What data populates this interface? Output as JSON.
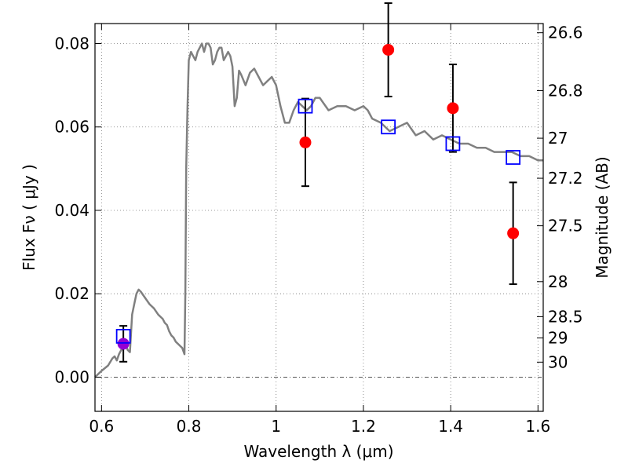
{
  "chart_data": {
    "type": "scatter",
    "title": "",
    "xlabel": "Wavelength  λ (μm)",
    "ylabel": "Flux  Fν  ( μJy )",
    "y2label": "Magnitude (AB)",
    "xlim": [
      0.585,
      1.612
    ],
    "ylim": [
      -0.0082,
      0.0848
    ],
    "x_ticks": [
      0.6,
      0.8,
      1.0,
      1.2,
      1.4,
      1.6
    ],
    "x_tick_labels": [
      "0.6",
      "0.8",
      "1",
      "1.2",
      "1.4",
      "1.6"
    ],
    "y_ticks": [
      0.0,
      0.02,
      0.04,
      0.06,
      0.08
    ],
    "y_tick_labels": [
      "0.00",
      "0.02",
      "0.04",
      "0.06",
      "0.08"
    ],
    "y2_ticks": [
      {
        "label": "26.6",
        "flux": 0.0826
      },
      {
        "label": "26.8",
        "flux": 0.0687
      },
      {
        "label": "27",
        "flux": 0.0573
      },
      {
        "label": "27.2",
        "flux": 0.0477
      },
      {
        "label": "27.5",
        "flux": 0.0363
      },
      {
        "label": "28",
        "flux": 0.0229
      },
      {
        "label": "28.5",
        "flux": 0.0145
      },
      {
        "label": "29",
        "flux": 0.0094
      },
      {
        "label": "30",
        "flux": 0.0036
      }
    ],
    "grid": true,
    "grid_style": "dotted",
    "zero_line": true,
    "series": [
      {
        "type": "line",
        "color": "#808080",
        "x": [
          0.585,
          0.6,
          0.615,
          0.625,
          0.63,
          0.635,
          0.64,
          0.645,
          0.65,
          0.655,
          0.66,
          0.665,
          0.67,
          0.675,
          0.68,
          0.685,
          0.69,
          0.7,
          0.71,
          0.72,
          0.73,
          0.74,
          0.745,
          0.75,
          0.755,
          0.76,
          0.765,
          0.77,
          0.775,
          0.78,
          0.785,
          0.79,
          0.792,
          0.794,
          0.797,
          0.8,
          0.805,
          0.81,
          0.815,
          0.82,
          0.825,
          0.83,
          0.835,
          0.84,
          0.845,
          0.85,
          0.855,
          0.86,
          0.865,
          0.87,
          0.875,
          0.88,
          0.885,
          0.89,
          0.895,
          0.9,
          0.905,
          0.91,
          0.915,
          0.92,
          0.93,
          0.94,
          0.95,
          0.96,
          0.97,
          0.98,
          0.99,
          1.0,
          1.01,
          1.02,
          1.03,
          1.04,
          1.05,
          1.06,
          1.07,
          1.08,
          1.09,
          1.1,
          1.12,
          1.14,
          1.16,
          1.18,
          1.2,
          1.21,
          1.22,
          1.24,
          1.26,
          1.28,
          1.3,
          1.32,
          1.34,
          1.36,
          1.38,
          1.4,
          1.42,
          1.44,
          1.46,
          1.48,
          1.5,
          1.52,
          1.54,
          1.56,
          1.58,
          1.6,
          1.612
        ],
        "y": [
          0.0,
          0.0015,
          0.0028,
          0.0045,
          0.005,
          0.004,
          0.0055,
          0.0065,
          0.007,
          0.008,
          0.0065,
          0.006,
          0.015,
          0.0175,
          0.02,
          0.021,
          0.0205,
          0.019,
          0.0175,
          0.0165,
          0.015,
          0.014,
          0.013,
          0.0125,
          0.011,
          0.01,
          0.0095,
          0.0085,
          0.008,
          0.0075,
          0.007,
          0.0055,
          0.02,
          0.05,
          0.065,
          0.076,
          0.078,
          0.077,
          0.076,
          0.078,
          0.079,
          0.08,
          0.078,
          0.08,
          0.08,
          0.079,
          0.075,
          0.076,
          0.078,
          0.079,
          0.079,
          0.076,
          0.077,
          0.078,
          0.077,
          0.0745,
          0.065,
          0.067,
          0.0735,
          0.0725,
          0.07,
          0.073,
          0.074,
          0.072,
          0.07,
          0.071,
          0.072,
          0.07,
          0.065,
          0.061,
          0.061,
          0.064,
          0.066,
          0.065,
          0.064,
          0.065,
          0.067,
          0.067,
          0.064,
          0.065,
          0.065,
          0.064,
          0.065,
          0.064,
          0.062,
          0.061,
          0.059,
          0.06,
          0.061,
          0.058,
          0.059,
          0.057,
          0.058,
          0.057,
          0.056,
          0.056,
          0.055,
          0.055,
          0.054,
          0.054,
          0.054,
          0.053,
          0.053,
          0.052,
          0.052
        ]
      },
      {
        "type": "points",
        "marker": "circle",
        "color": "#ff0000",
        "x": [
          1.067,
          1.257,
          1.405,
          1.543
        ],
        "y": [
          0.0563,
          0.0785,
          0.0645,
          0.0345
        ],
        "yerr": [
          0.0105,
          0.0112,
          0.0105,
          0.0122
        ]
      },
      {
        "type": "points",
        "marker": "circle",
        "color": "#9400d3",
        "x": [
          0.65
        ],
        "y": [
          0.008
        ],
        "yerr": [
          0.0043
        ]
      },
      {
        "type": "points",
        "marker": "open-square",
        "color": "#0000ff",
        "x": [
          0.65,
          1.067,
          1.257,
          1.405,
          1.543
        ],
        "y": [
          0.0098,
          0.065,
          0.06,
          0.056,
          0.0527
        ]
      }
    ]
  }
}
